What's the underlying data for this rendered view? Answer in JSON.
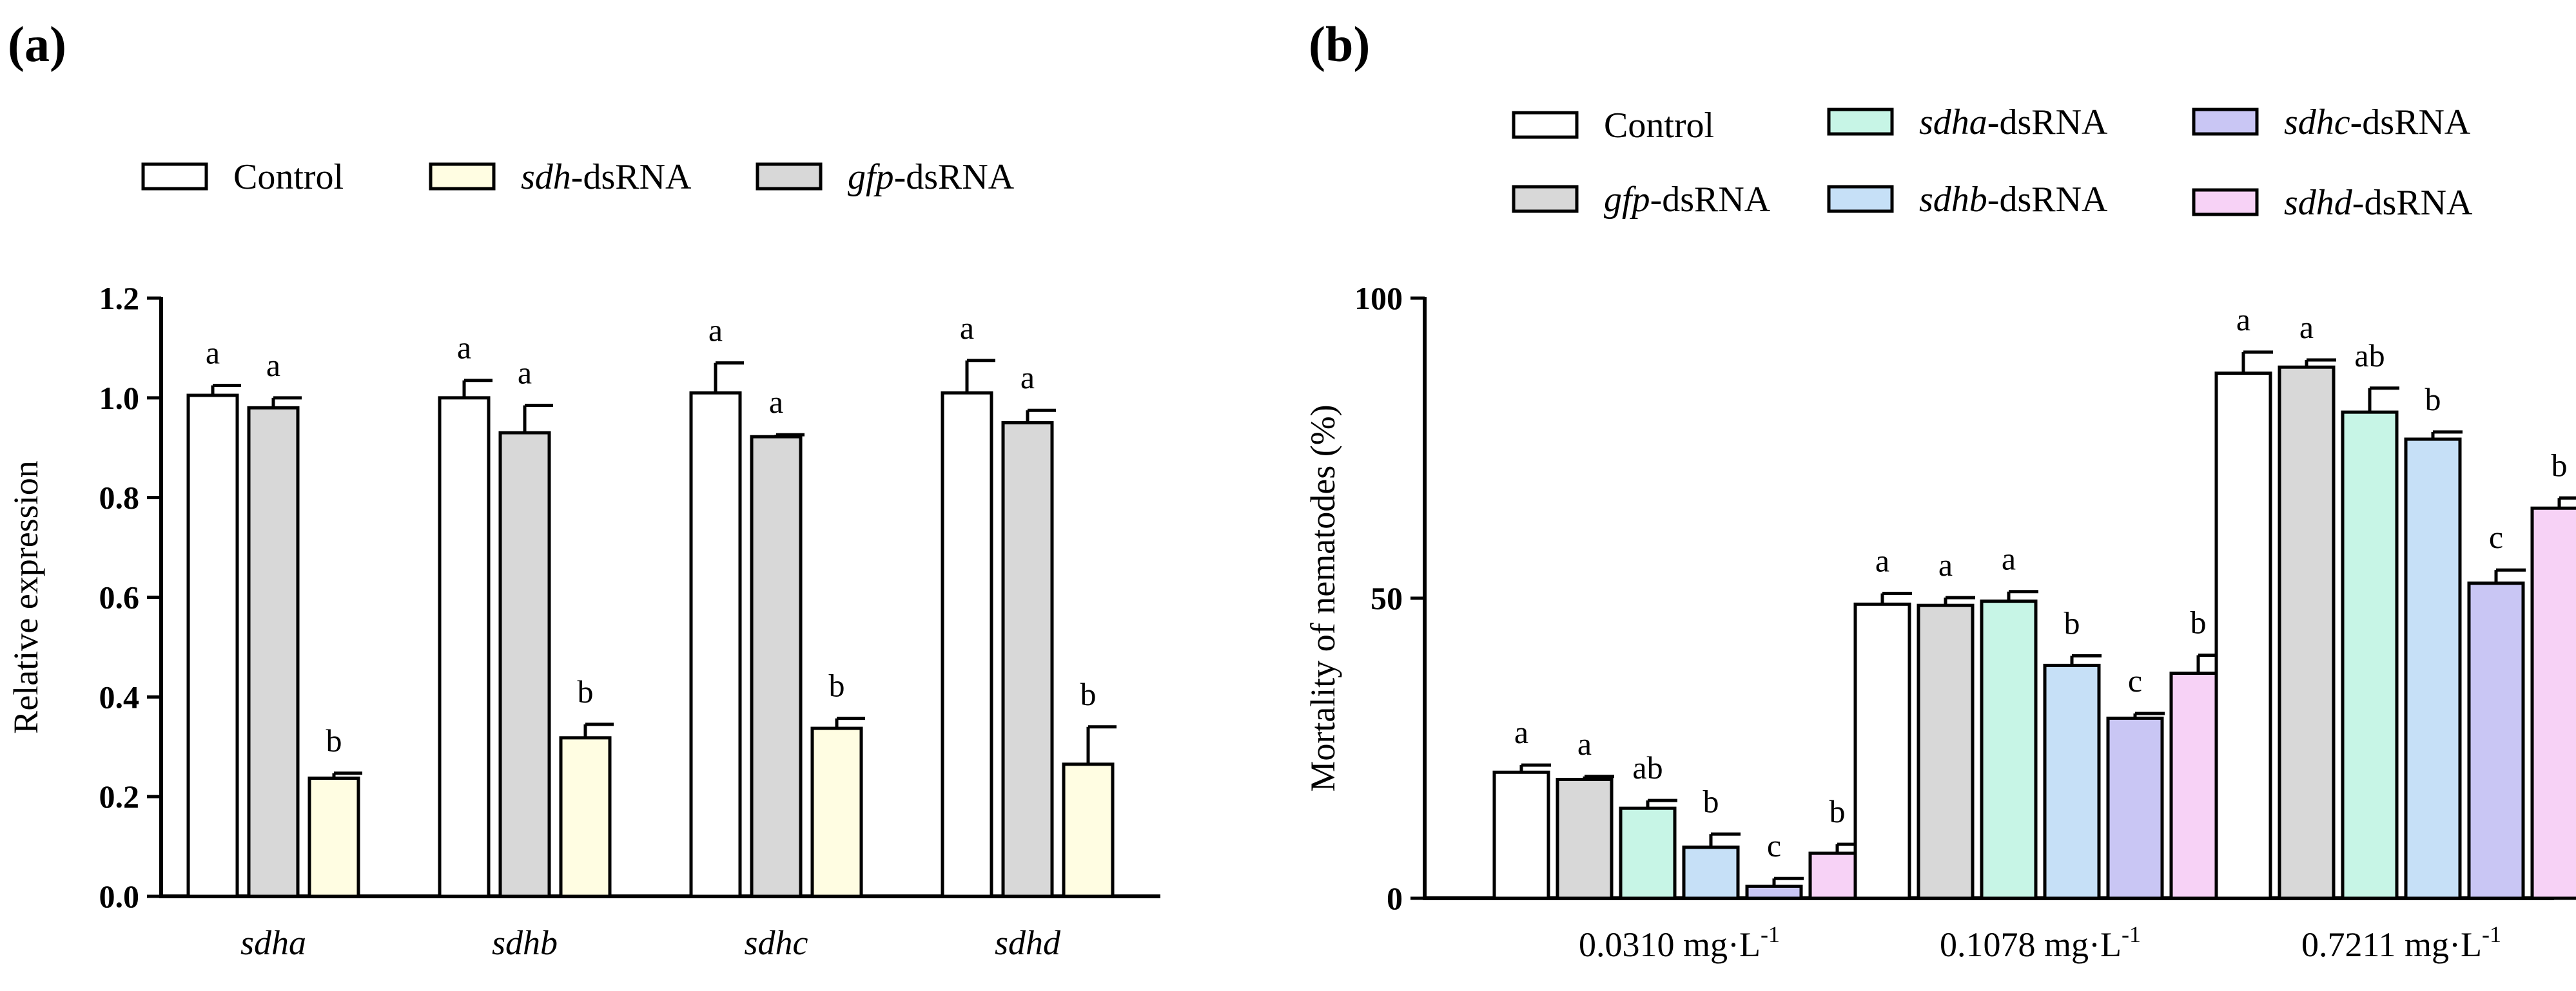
{
  "colors": {
    "control": "#ffffff",
    "sdh": "#fffde2",
    "gfp": "#d8d8d8",
    "sdha": "#c7f5e6",
    "sdhb": "#c6e0f7",
    "sdhc": "#c9c6f4",
    "sdhd": "#f7d2f6"
  },
  "chart_data": [
    {
      "panel": "(a)",
      "type": "bar",
      "ylabel": "Relative expression",
      "ylim": [
        0,
        1.2
      ],
      "yticks": [
        "0.0",
        "0.2",
        "0.4",
        "0.6",
        "0.8",
        "1.0",
        "1.2"
      ],
      "categories": [
        "sdha",
        "sdhb",
        "sdhc",
        "sdhd"
      ],
      "legend": [
        {
          "key": "control",
          "text": "Control"
        },
        {
          "key": "sdh",
          "italic": "sdh",
          "text": "-dsRNA"
        },
        {
          "key": "gfp",
          "italic": "gfp",
          "text": "-dsRNA"
        }
      ],
      "series": [
        {
          "name": "Control",
          "key": "control",
          "values": [
            1.005,
            1.0,
            1.01,
            1.01
          ],
          "errors": [
            0.02,
            0.035,
            0.06,
            0.065
          ],
          "labels": [
            "a",
            "a",
            "a",
            "a"
          ]
        },
        {
          "name": "gfp-dsRNA",
          "key": "gfp",
          "values": [
            0.98,
            0.93,
            0.922,
            0.95
          ],
          "errors": [
            0.02,
            0.055,
            0.004,
            0.025
          ],
          "labels": [
            "a",
            "a",
            "a",
            "a"
          ]
        },
        {
          "name": "sdh-dsRNA",
          "key": "sdh",
          "values": [
            0.237,
            0.318,
            0.337,
            0.265
          ],
          "errors": [
            0.01,
            0.027,
            0.02,
            0.075
          ],
          "labels": [
            "b",
            "b",
            "b",
            "b"
          ]
        }
      ]
    },
    {
      "panel": "(b)",
      "type": "bar",
      "ylabel": "Mortality of nematodes (%)",
      "ylim": [
        0,
        100
      ],
      "yticks": [
        "0",
        "50",
        "100"
      ],
      "categories": [
        {
          "value": "0.0310 mg·L",
          "sup": "-1"
        },
        {
          "value": "0.1078 mg·L",
          "sup": "-1"
        },
        {
          "value": "0.7211 mg·L",
          "sup": "-1"
        }
      ],
      "legend": [
        {
          "key": "control",
          "text": "Control"
        },
        {
          "key": "gfp",
          "italic": "gfp",
          "text": "-dsRNA"
        },
        {
          "key": "sdha",
          "italic": "sdha",
          "text": "-dsRNA"
        },
        {
          "key": "sdhb",
          "italic": "sdhb",
          "text": "-dsRNA"
        },
        {
          "key": "sdhc",
          "italic": "sdhc",
          "text": "-dsRNA"
        },
        {
          "key": "sdhd",
          "italic": "sdhd",
          "text": "-dsRNA"
        }
      ],
      "series": [
        {
          "name": "Control",
          "key": "control",
          "values": [
            21,
            49,
            87.5
          ],
          "errors": [
            1.2,
            1.8,
            3.5
          ],
          "labels": [
            "a",
            "a",
            "a"
          ]
        },
        {
          "name": "gfp-dsRNA",
          "key": "gfp",
          "values": [
            19.8,
            48.8,
            88.5
          ],
          "errors": [
            0.5,
            1.3,
            1.2
          ],
          "labels": [
            "a",
            "a",
            "a"
          ]
        },
        {
          "name": "sdha-dsRNA",
          "key": "sdha",
          "values": [
            15,
            49.5,
            81
          ],
          "errors": [
            1.3,
            1.6,
            4
          ],
          "labels": [
            "ab",
            "a",
            "ab"
          ]
        },
        {
          "name": "sdhb-dsRNA",
          "key": "sdhb",
          "values": [
            8.5,
            38.8,
            76.5
          ],
          "errors": [
            2.2,
            1.6,
            1.2
          ],
          "labels": [
            "b",
            "b",
            "b"
          ]
        },
        {
          "name": "sdhc-dsRNA",
          "key": "sdhc",
          "values": [
            2,
            30,
            52.5
          ],
          "errors": [
            1.3,
            0.8,
            2.2
          ],
          "labels": [
            "c",
            "c",
            "c"
          ]
        },
        {
          "name": "sdhd-dsRNA",
          "key": "sdhd",
          "values": [
            7.5,
            37.5,
            65
          ],
          "errors": [
            1.5,
            3,
            1.7
          ],
          "labels": [
            "b",
            "b",
            "b"
          ]
        }
      ]
    }
  ]
}
